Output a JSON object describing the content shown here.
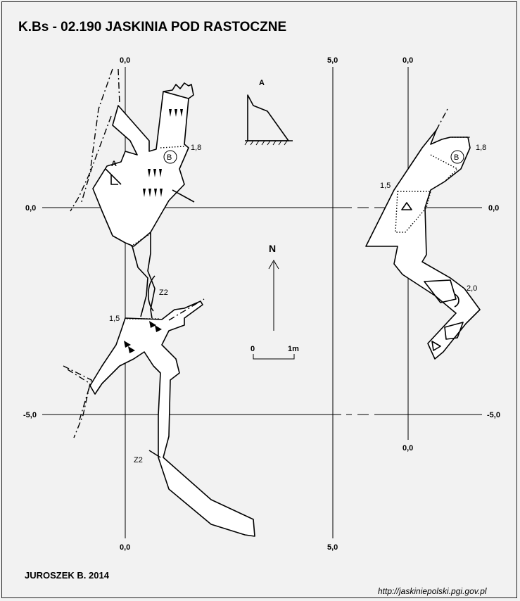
{
  "title": "K.Bs - 02.190  JASKINIA POD RASTOCZNE",
  "author": "JUROSZEK B. 2014",
  "url": "http://jaskiniepolski.pgi.gov.pl",
  "grid": {
    "top_left": "0,0",
    "top_mid": "5,0",
    "top_right": "0,0",
    "bottom_left": "0,0",
    "bottom_mid": "5,0",
    "bottom_right": "0,0",
    "row_zero_left": "0,0",
    "row_zero_right": "0,0",
    "row_minus5_left": "-5,0",
    "row_minus5_right": "-5,0"
  },
  "plan": {
    "depth_1": "1,8",
    "depth_2": "1,5",
    "marker_b": "B",
    "section_a": "A",
    "z2_upper": "Z2",
    "z2_lower": "Z2"
  },
  "section": {
    "title": "A"
  },
  "compass": {
    "north": "N"
  },
  "scale": {
    "min": "0",
    "max": "1m"
  },
  "profile": {
    "depth_1": "1,8",
    "depth_2": "1,5",
    "depth_3": "2,0",
    "marker_b": "B"
  }
}
